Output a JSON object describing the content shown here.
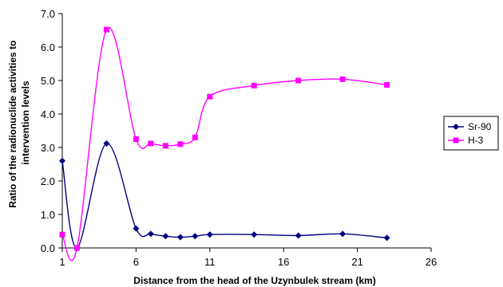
{
  "chart_data": {
    "type": "line",
    "title": "",
    "xlabel": "Distance from the head of the Uzynbulek stream (km)",
    "ylabel_lines": [
      "Ratio of the radionuclide activities to",
      "intervention levels"
    ],
    "xlim": [
      1,
      26
    ],
    "ylim": [
      0,
      7
    ],
    "x_ticks": [
      "1",
      "6",
      "11",
      "16",
      "21",
      "26"
    ],
    "y_ticks": [
      "0.0",
      "1.0",
      "2.0",
      "3.0",
      "4.0",
      "5.0",
      "6.0",
      "7.0"
    ],
    "grid": false,
    "legend": "right",
    "series": [
      {
        "name": "Sr-90",
        "color": "#000080",
        "marker": "diamond",
        "points": [
          [
            1,
            2.6
          ],
          [
            2,
            0.0
          ],
          [
            4,
            3.12
          ],
          [
            6,
            0.58
          ],
          [
            7,
            0.42
          ],
          [
            8,
            0.35
          ],
          [
            9,
            0.32
          ],
          [
            10,
            0.35
          ],
          [
            11,
            0.4
          ],
          [
            14,
            0.4
          ],
          [
            17,
            0.37
          ],
          [
            20,
            0.42
          ],
          [
            23,
            0.3
          ]
        ]
      },
      {
        "name": "H-3",
        "color": "#ff00ff",
        "marker": "square",
        "points": [
          [
            1,
            0.4
          ],
          [
            2,
            0.0
          ],
          [
            4,
            6.52
          ],
          [
            6,
            3.25
          ],
          [
            7,
            3.12
          ],
          [
            8,
            3.05
          ],
          [
            9,
            3.1
          ],
          [
            10,
            3.3
          ],
          [
            11,
            4.52
          ],
          [
            14,
            4.85
          ],
          [
            17,
            5.0
          ],
          [
            20,
            5.04
          ],
          [
            23,
            4.87
          ]
        ]
      }
    ]
  }
}
